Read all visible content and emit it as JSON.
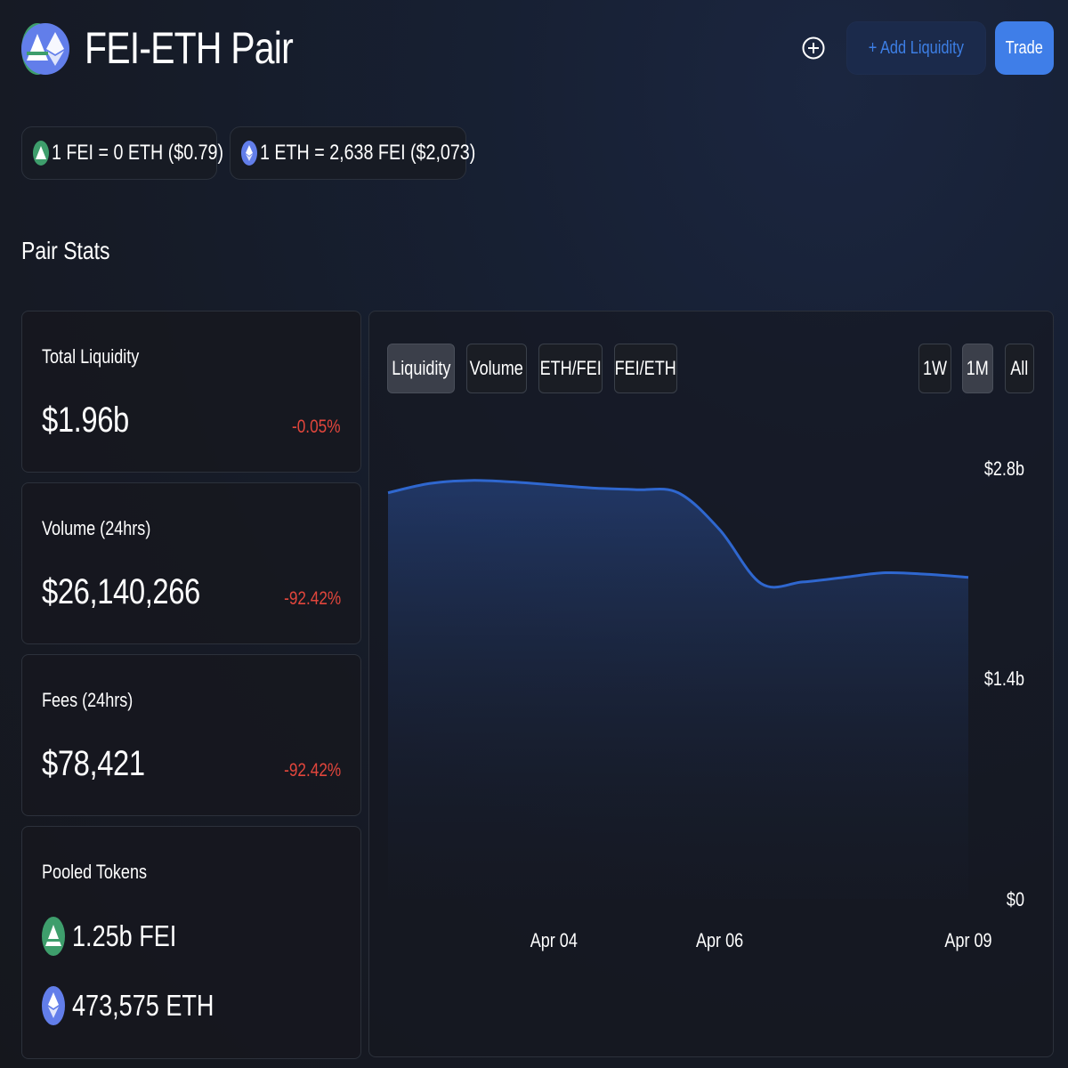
{
  "header": {
    "title": "FEI-ETH Pair",
    "add_liquidity_label": "+ Add Liquidity",
    "trade_label": "Trade",
    "icons": {
      "add": "plus-circle-icon",
      "fei": "fei-token-icon",
      "eth": "eth-token-icon"
    }
  },
  "prices": {
    "fei_eth": "1 FEI = 0 ETH ($0.79)",
    "eth_fei": "1 ETH = 2,638 FEI ($2,073)"
  },
  "pair_stats": {
    "title": "Pair Stats",
    "total_liquidity": {
      "label": "Total Liquidity",
      "value": "$1.96b",
      "change": "-0.05%"
    },
    "volume": {
      "label": "Volume (24hrs)",
      "value": "$26,140,266",
      "change": "-92.42%"
    },
    "fees": {
      "label": "Fees (24hrs)",
      "value": "$78,421",
      "change": "-92.42%"
    },
    "pooled": {
      "label": "Pooled Tokens",
      "fei": "1.25b FEI",
      "eth": "473,575 ETH"
    }
  },
  "chart_tabs": {
    "metrics": [
      "Liquidity",
      "Volume",
      "ETH/FEI",
      "FEI/ETH"
    ],
    "active_metric": "Liquidity",
    "ranges": [
      "1W",
      "1M",
      "All"
    ],
    "active_range": "1M"
  },
  "colors": {
    "accent": "#3f7ee8",
    "negative": "#e2463c",
    "line": "#2f67cf",
    "fei_green": "#3e9e6c",
    "eth_purple": "#627eea"
  },
  "chart_data": {
    "type": "area",
    "series": [
      {
        "x": [
          "Apr 02",
          "Apr 02",
          "Apr 03",
          "Apr 03",
          "Apr 04",
          "Apr 04",
          "Apr 05",
          "Apr 05",
          "Apr 06",
          "Apr 06",
          "Apr 07",
          "Apr 07",
          "Apr 08",
          "Apr 08",
          "Apr 09"
        ],
        "values": [
          2.64,
          2.7,
          2.72,
          2.71,
          2.69,
          2.67,
          2.66,
          2.64,
          2.4,
          2.05,
          2.06,
          2.09,
          2.12,
          2.11,
          2.09
        ]
      }
    ],
    "x_ticks": [
      "Apr 04",
      "Apr 06",
      "Apr 09"
    ],
    "y_ticks": [
      "$2.8b",
      "$1.4b",
      "$0"
    ],
    "ylim": [
      0,
      2.8
    ],
    "grid": false
  }
}
